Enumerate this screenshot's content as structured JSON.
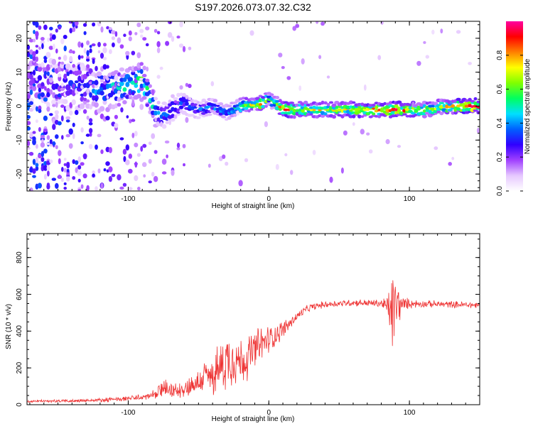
{
  "title": "S197.2026.073.07.32.C32",
  "chart_data": [
    {
      "type": "heatmap",
      "xlabel": "Height of straight line (km)",
      "ylabel": "Frequency (Hz)",
      "xlim": [
        -172,
        150
      ],
      "ylim": [
        -25,
        25
      ],
      "x_ticks": [
        -100,
        0,
        100
      ],
      "y_ticks": [
        -20,
        -10,
        0,
        10,
        20
      ],
      "colorbar": {
        "label": "Normalized spectral amplitude",
        "range": [
          0,
          1
        ],
        "ticks": [
          0.0,
          0.2,
          0.4,
          0.6,
          0.8
        ],
        "tick_labels": [
          "0.0",
          "0.2",
          "0.4",
          "0.6",
          "0.8"
        ],
        "colors": [
          "#ffffff",
          "#e6c8ff",
          "#a040ff",
          "#3000ff",
          "#0060ff",
          "#00e0ff",
          "#00ff60",
          "#80ff00",
          "#ffff00",
          "#ff8000",
          "#ff0000",
          "#ff00a0"
        ]
      },
      "ridge": {
        "x": [
          -172,
          -150,
          -130,
          -120,
          -110,
          -100,
          -95,
          -90,
          -85,
          -80,
          -75,
          -70,
          -60,
          -50,
          -40,
          -30,
          -25,
          -20,
          -15,
          -10,
          -5,
          0,
          5,
          10,
          20,
          40,
          60,
          80,
          90,
          100,
          110,
          120,
          130,
          140,
          150
        ],
        "freq": [
          8,
          7,
          6,
          5,
          5,
          6,
          7,
          8,
          3,
          -2,
          -3,
          -1,
          1,
          -1,
          0,
          -2,
          -1,
          0,
          0.5,
          0.5,
          1,
          2,
          1,
          -1,
          -1,
          -1,
          -1,
          -1,
          -1,
          -1,
          -1,
          -0.5,
          0,
          0,
          0
        ],
        "amp": [
          0.2,
          0.25,
          0.35,
          0.45,
          0.45,
          0.5,
          0.55,
          0.6,
          0.5,
          0.4,
          0.35,
          0.35,
          0.35,
          0.35,
          0.4,
          0.45,
          0.5,
          0.55,
          0.7,
          0.75,
          0.8,
          0.5,
          0.6,
          0.85,
          0.7,
          0.72,
          0.75,
          0.8,
          0.85,
          0.8,
          0.7,
          0.65,
          0.75,
          0.85,
          0.9
        ]
      }
    },
    {
      "type": "line",
      "xlabel": "Height of straight line (km)",
      "ylabel": "SNR (10 * v/v)",
      "xlim": [
        -172,
        150
      ],
      "ylim": [
        0,
        930
      ],
      "x_ticks": [
        -100,
        0,
        100
      ],
      "y_ticks": [
        0,
        200,
        400,
        600,
        800
      ],
      "series": [
        {
          "name": "SNR",
          "color": "#ee3333",
          "envelope_x": [
            -172,
            -150,
            -130,
            -110,
            -90,
            -80,
            -75,
            -70,
            -60,
            -50,
            -45,
            -40,
            -35,
            -30,
            -25,
            -20,
            -15,
            -10,
            -5,
            0,
            5,
            10,
            15,
            20,
            25,
            30,
            40,
            60,
            80,
            85,
            88,
            90,
            95,
            100,
            110,
            130,
            150
          ],
          "envelope_mean": [
            18,
            20,
            22,
            28,
            40,
            55,
            90,
            70,
            90,
            120,
            160,
            150,
            200,
            240,
            260,
            230,
            260,
            300,
            330,
            355,
            380,
            410,
            440,
            480,
            510,
            530,
            545,
            555,
            550,
            530,
            500,
            540,
            545,
            550,
            548,
            545,
            540
          ],
          "envelope_spread": [
            8,
            10,
            12,
            14,
            20,
            30,
            70,
            40,
            60,
            80,
            110,
            120,
            160,
            190,
            180,
            160,
            140,
            130,
            120,
            90,
            70,
            60,
            40,
            30,
            25,
            22,
            22,
            22,
            25,
            90,
            300,
            200,
            50,
            30,
            22,
            22,
            22
          ]
        }
      ]
    }
  ]
}
